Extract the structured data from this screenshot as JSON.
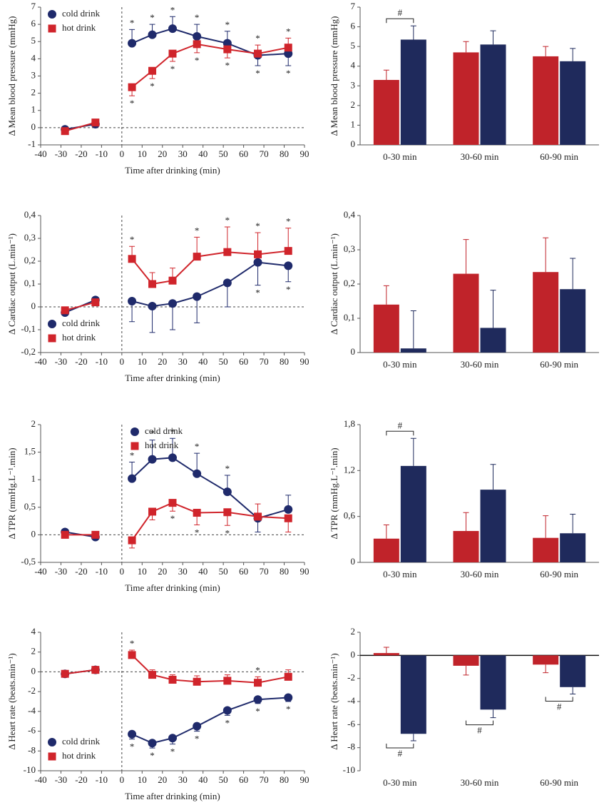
{
  "chart_data": [
    {
      "type": "line",
      "xlabel": "Time after drinking (min)",
      "ylabel": "Δ Mean blood pressure (mmHg)",
      "legend": "upper left",
      "x": [
        -28,
        -13,
        5,
        15,
        25,
        37,
        52,
        67,
        82
      ],
      "xlim": [
        -40,
        90
      ],
      "xticks": [
        -40,
        -30,
        -20,
        -10,
        0,
        10,
        20,
        30,
        40,
        50,
        60,
        70,
        80,
        90
      ],
      "ylim": [
        -1,
        7
      ],
      "yticks": [
        -1,
        0,
        1,
        2,
        3,
        4,
        5,
        6,
        7
      ],
      "series": [
        {
          "name": "cold drink",
          "color": "#1f2a6b",
          "values": [
            -0.1,
            0.2,
            4.9,
            5.4,
            5.75,
            5.3,
            4.9,
            4.2,
            4.3
          ],
          "errors": [
            0.1,
            0.1,
            0.8,
            0.6,
            0.7,
            0.7,
            0.7,
            0.6,
            0.7
          ],
          "annotations": [
            null,
            null,
            "*",
            "*",
            "*",
            "*",
            "*",
            "*",
            "*"
          ]
        },
        {
          "name": "hot drink",
          "color": "#d0242b",
          "values": [
            -0.2,
            0.3,
            2.35,
            3.3,
            4.3,
            4.85,
            4.55,
            4.3,
            4.65
          ],
          "errors": [
            0.1,
            0.1,
            0.5,
            0.45,
            0.45,
            0.5,
            0.5,
            0.5,
            0.55
          ],
          "annotations": [
            null,
            null,
            "*",
            "*",
            "*",
            "*",
            "*",
            "*",
            "*"
          ]
        }
      ]
    },
    {
      "type": "bar",
      "ylabel": "Δ Mean blood pressure (mmHg)",
      "categories": [
        "0-30 min",
        "30-60 min",
        "60-90 min"
      ],
      "ylim": [
        0,
        7
      ],
      "yticks": [
        0,
        1,
        2,
        3,
        4,
        5,
        6,
        7
      ],
      "brackets": [
        "#",
        null,
        null
      ],
      "series": [
        {
          "name": "hot drink",
          "color": "#c0232a",
          "values": [
            3.3,
            4.7,
            4.5
          ],
          "errors": [
            0.5,
            0.55,
            0.5
          ]
        },
        {
          "name": "cold drink",
          "color": "#1f2a5c",
          "values": [
            5.35,
            5.1,
            4.25
          ],
          "errors": [
            0.7,
            0.7,
            0.65
          ]
        }
      ]
    },
    {
      "type": "line",
      "xlabel": "Time after drinking (min)",
      "ylabel": "Δ Cardiac output (L.min⁻¹)",
      "legend": "lower left",
      "x": [
        -28,
        -13,
        5,
        15,
        25,
        37,
        52,
        67,
        82
      ],
      "xlim": [
        -40,
        90
      ],
      "xticks": [
        -40,
        -30,
        -20,
        -10,
        0,
        10,
        20,
        30,
        40,
        50,
        60,
        70,
        80,
        90
      ],
      "ylim": [
        -0.2,
        0.4
      ],
      "yticks": [
        {
          "value": -0.2,
          "label": "-0,2"
        },
        {
          "value": -0.1,
          "label": "-0,1"
        },
        0,
        {
          "value": 0.1,
          "label": "0,1"
        },
        {
          "value": 0.2,
          "label": "0,2"
        },
        {
          "value": 0.3,
          "label": "0,3"
        },
        {
          "value": 0.4,
          "label": "0,4"
        }
      ],
      "series": [
        {
          "name": "cold drink",
          "color": "#1f2a6b",
          "values": [
            -0.025,
            0.03,
            0.025,
            0.003,
            0.015,
            0.045,
            0.105,
            0.195,
            0.18
          ],
          "errors": [
            0.01,
            0.01,
            0.09,
            0.115,
            0.115,
            0.115,
            0.105,
            0.1,
            0.07
          ],
          "annotations": [
            null,
            null,
            null,
            null,
            null,
            null,
            null,
            "*",
            "*"
          ]
        },
        {
          "name": "hot drink",
          "color": "#d0242b",
          "values": [
            -0.015,
            0.02,
            0.21,
            0.1,
            0.115,
            0.22,
            0.24,
            0.23,
            0.245
          ],
          "errors": [
            0.01,
            0.01,
            0.055,
            0.05,
            0.055,
            0.085,
            0.11,
            0.095,
            0.1
          ],
          "annotations": [
            null,
            null,
            "*",
            null,
            null,
            "*",
            "*",
            "*",
            "*"
          ]
        }
      ]
    },
    {
      "type": "bar",
      "ylabel": "Δ Cardiac output (L.min⁻¹)",
      "categories": [
        "0-30 min",
        "30-60 min",
        "60-90 min"
      ],
      "ylim": [
        0,
        0.4
      ],
      "yticks": [
        0,
        {
          "value": 0.1,
          "label": "0,1"
        },
        {
          "value": 0.2,
          "label": "0,2"
        },
        {
          "value": 0.3,
          "label": "0,3"
        },
        {
          "value": 0.4,
          "label": "0,4"
        }
      ],
      "brackets": [
        null,
        null,
        null
      ],
      "series": [
        {
          "name": "hot drink",
          "color": "#c0232a",
          "values": [
            0.14,
            0.23,
            0.235
          ],
          "errors": [
            0.055,
            0.1,
            0.1
          ]
        },
        {
          "name": "cold drink",
          "color": "#1f2a5c",
          "values": [
            0.012,
            0.072,
            0.185
          ],
          "errors": [
            0.11,
            0.11,
            0.09
          ]
        }
      ]
    },
    {
      "type": "line",
      "xlabel": "Time after drinking (min)",
      "ylabel": "Δ TPR (mmHg.L⁻¹.min)",
      "legend": "upper center",
      "x": [
        -28,
        -13,
        5,
        15,
        25,
        37,
        52,
        67,
        82
      ],
      "xlim": [
        -40,
        90
      ],
      "xticks": [
        -40,
        -30,
        -20,
        -10,
        0,
        10,
        20,
        30,
        40,
        50,
        60,
        70,
        80,
        90
      ],
      "ylim": [
        -0.5,
        2
      ],
      "yticks": [
        {
          "value": -0.5,
          "label": "-0,5"
        },
        0,
        {
          "value": 0.5,
          "label": "0,5"
        },
        1,
        {
          "value": 1.5,
          "label": "1,5"
        },
        2
      ],
      "series": [
        {
          "name": "cold drink",
          "color": "#1f2a6b",
          "values": [
            0.05,
            -0.04,
            1.02,
            1.37,
            1.4,
            1.11,
            0.78,
            0.3,
            0.46
          ],
          "errors": [
            0.02,
            0.02,
            0.3,
            0.35,
            0.35,
            0.37,
            0.3,
            0.25,
            0.26
          ],
          "annotations": [
            null,
            null,
            "*",
            "*",
            "*",
            "*",
            "*",
            null,
            null
          ]
        },
        {
          "name": "hot drink",
          "color": "#d0242b",
          "values": [
            0,
            0,
            -0.1,
            0.42,
            0.58,
            0.4,
            0.41,
            0.33,
            0.3
          ],
          "errors": [
            0.02,
            0.02,
            0.14,
            0.15,
            0.15,
            0.22,
            0.24,
            0.23,
            0.25
          ],
          "annotations": [
            null,
            null,
            null,
            null,
            "*",
            "*",
            "*",
            null,
            null
          ]
        }
      ]
    },
    {
      "type": "bar",
      "ylabel": "Δ TPR (mmHg.L⁻¹.min)",
      "categories": [
        "0-30 min",
        "30-60 min",
        "60-90 min"
      ],
      "ylim": [
        0,
        1.8
      ],
      "yticks": [
        0,
        {
          "value": 0.6,
          "label": "0,6"
        },
        {
          "value": 1.2,
          "label": "1,2"
        },
        {
          "value": 1.8,
          "label": "1,8"
        }
      ],
      "brackets": [
        "#",
        null,
        null
      ],
      "series": [
        {
          "name": "hot drink",
          "color": "#c0232a",
          "values": [
            0.31,
            0.41,
            0.32
          ],
          "errors": [
            0.18,
            0.24,
            0.29
          ]
        },
        {
          "name": "cold drink",
          "color": "#1f2a5c",
          "values": [
            1.26,
            0.95,
            0.38
          ],
          "errors": [
            0.36,
            0.33,
            0.25
          ]
        }
      ]
    },
    {
      "type": "line",
      "xlabel": "Time after drinking (min)",
      "ylabel": "Δ Heart rate (beats.min⁻¹)",
      "legend": "lower left",
      "x": [
        -28,
        -13,
        5,
        15,
        25,
        37,
        52,
        67,
        82
      ],
      "xlim": [
        -40,
        90
      ],
      "xticks": [
        -40,
        -30,
        -20,
        -10,
        0,
        10,
        20,
        30,
        40,
        50,
        60,
        70,
        80,
        90
      ],
      "ylim": [
        -10,
        4
      ],
      "yticks": [
        -10,
        -8,
        -6,
        -4,
        -2,
        0,
        2,
        4
      ],
      "series": [
        {
          "name": "cold drink",
          "color": "#1f2a6b",
          "values": [
            -0.2,
            0.2,
            -6.3,
            -7.2,
            -6.7,
            -5.5,
            -3.9,
            -2.8,
            -2.6
          ],
          "errors": [
            0.3,
            0.3,
            0.5,
            0.5,
            0.6,
            0.5,
            0.5,
            0.4,
            0.4
          ],
          "annotations": [
            null,
            null,
            "*",
            "*",
            "*",
            "*",
            "*",
            "*",
            "*"
          ]
        },
        {
          "name": "hot drink",
          "color": "#d0242b",
          "values": [
            -0.2,
            0.2,
            1.7,
            -0.3,
            -0.8,
            -1.0,
            -0.9,
            -1.1,
            -0.5
          ],
          "errors": [
            0.3,
            0.3,
            0.5,
            0.5,
            0.5,
            0.6,
            0.6,
            0.6,
            0.7
          ],
          "annotations": [
            null,
            null,
            "*",
            null,
            null,
            null,
            null,
            "*",
            null
          ]
        }
      ]
    },
    {
      "type": "bar",
      "ylabel": "Δ Heart rate (beats.min⁻¹)",
      "categories": [
        "0-30 min",
        "30-60 min",
        "60-90 min"
      ],
      "ylim": [
        -10,
        2
      ],
      "yticks": [
        -10,
        -8,
        -6,
        -4,
        -2,
        0,
        2
      ],
      "brackets": [
        "#",
        "#",
        "#"
      ],
      "series": [
        {
          "name": "hot drink",
          "color": "#c0232a",
          "values": [
            0.2,
            -0.9,
            -0.8
          ],
          "errors": [
            0.5,
            0.8,
            0.7
          ]
        },
        {
          "name": "cold drink",
          "color": "#1f2a5c",
          "values": [
            -6.8,
            -4.7,
            -2.75
          ],
          "errors": [
            0.6,
            0.7,
            0.6
          ]
        }
      ]
    }
  ]
}
